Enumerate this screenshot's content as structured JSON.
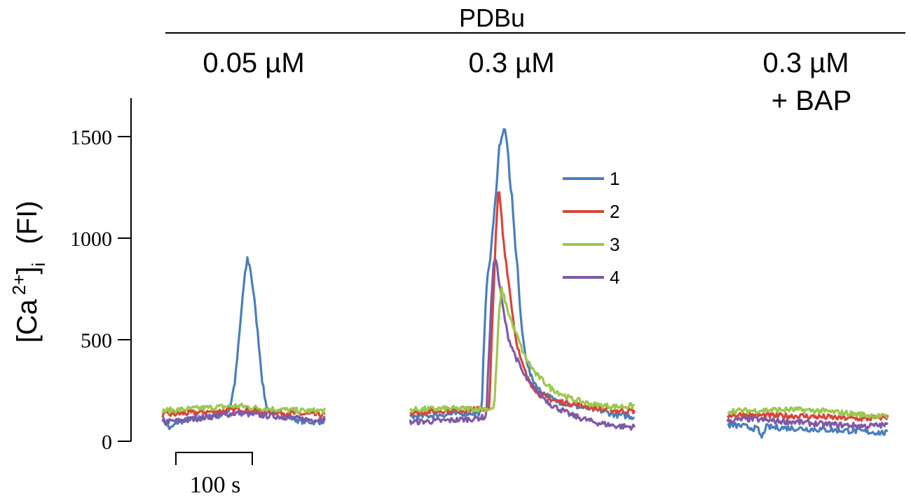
{
  "figure": {
    "drug_label": "PDBu",
    "y_axis_label": {
      "main": "[Ca",
      "superscript": "2+",
      "bracket": "]",
      "subscript": "i",
      "unit": "(FI)"
    },
    "y_ticks": [
      0,
      500,
      1000,
      1500
    ],
    "scale_bar_label": "100 s",
    "panels": [
      {
        "label": "0.05 µM",
        "label_line2": ""
      },
      {
        "label": "0.3 µM",
        "label_line2": ""
      },
      {
        "label": "0.3 µM",
        "label_line2": "+ BAP"
      }
    ],
    "legend": [
      {
        "name": "1",
        "color": "#4a7ebb"
      },
      {
        "name": "2",
        "color": "#d9443a"
      },
      {
        "name": "3",
        "color": "#9bc84f"
      },
      {
        "name": "4",
        "color": "#7e5aa8"
      }
    ]
  },
  "chart_data": {
    "type": "line",
    "ylabel": "[Ca 2+]i (FI)",
    "xlabel": "",
    "ylim": [
      0,
      1650
    ],
    "x_unit": "s",
    "scale_bar_seconds": 100,
    "panels": [
      {
        "title": "0.05 µM",
        "duration_s": 213,
        "series": [
          {
            "name": "1",
            "color": "#4a7ebb",
            "points": [
              [
                0,
                110
              ],
              [
                10,
                60
              ],
              [
                20,
                95
              ],
              [
                40,
                110
              ],
              [
                60,
                120
              ],
              [
                80,
                130
              ],
              [
                88,
                160
              ],
              [
                95,
                300
              ],
              [
                100,
                500
              ],
              [
                105,
                720
              ],
              [
                108,
                820
              ],
              [
                111,
                900
              ],
              [
                115,
                850
              ],
              [
                120,
                700
              ],
              [
                126,
                480
              ],
              [
                131,
                280
              ],
              [
                136,
                170
              ],
              [
                145,
                130
              ],
              [
                165,
                120
              ],
              [
                180,
                100
              ],
              [
                200,
                95
              ],
              [
                213,
                100
              ]
            ]
          },
          {
            "name": "2",
            "color": "#d9443a",
            "points": [
              [
                0,
                130
              ],
              [
                20,
                135
              ],
              [
                40,
                140
              ],
              [
                60,
                145
              ],
              [
                80,
                150
              ],
              [
                100,
                160
              ],
              [
                120,
                150
              ],
              [
                140,
                145
              ],
              [
                160,
                140
              ],
              [
                180,
                135
              ],
              [
                200,
                130
              ],
              [
                213,
                130
              ]
            ]
          },
          {
            "name": "3",
            "color": "#9bc84f",
            "points": [
              [
                0,
                150
              ],
              [
                20,
                155
              ],
              [
                40,
                160
              ],
              [
                60,
                165
              ],
              [
                80,
                170
              ],
              [
                100,
                175
              ],
              [
                120,
                165
              ],
              [
                140,
                160
              ],
              [
                160,
                155
              ],
              [
                180,
                150
              ],
              [
                200,
                150
              ],
              [
                213,
                150
              ]
            ]
          },
          {
            "name": "4",
            "color": "#7e5aa8",
            "points": [
              [
                0,
                95
              ],
              [
                20,
                100
              ],
              [
                40,
                110
              ],
              [
                60,
                120
              ],
              [
                80,
                130
              ],
              [
                100,
                140
              ],
              [
                120,
                130
              ],
              [
                140,
                125
              ],
              [
                160,
                120
              ],
              [
                180,
                110
              ],
              [
                200,
                105
              ],
              [
                213,
                110
              ]
            ]
          }
        ]
      },
      {
        "title": "0.3 µM",
        "duration_s": 294,
        "series": [
          {
            "name": "1",
            "color": "#4a7ebb",
            "points": [
              [
                0,
                120
              ],
              [
                40,
                130
              ],
              [
                80,
                140
              ],
              [
                94,
                140
              ],
              [
                97,
                500
              ],
              [
                100,
                760
              ],
              [
                105,
                900
              ],
              [
                110,
                1100
              ],
              [
                114,
                1300
              ],
              [
                117,
                1450
              ],
              [
                120,
                1500
              ],
              [
                124,
                1540
              ],
              [
                128,
                1450
              ],
              [
                131,
                1250
              ],
              [
                134,
                1200
              ],
              [
                137,
                1000
              ],
              [
                141,
                850
              ],
              [
                145,
                600
              ],
              [
                150,
                450
              ],
              [
                158,
                320
              ],
              [
                170,
                250
              ],
              [
                190,
                200
              ],
              [
                220,
                170
              ],
              [
                250,
                150
              ],
              [
                270,
                130
              ],
              [
                294,
                120
              ]
            ]
          },
          {
            "name": "2",
            "color": "#d9443a",
            "points": [
              [
                0,
                140
              ],
              [
                40,
                150
              ],
              [
                80,
                155
              ],
              [
                104,
                160
              ],
              [
                107,
                500
              ],
              [
                110,
                800
              ],
              [
                113,
                1050
              ],
              [
                116,
                1250
              ],
              [
                119,
                1150
              ],
              [
                122,
                1000
              ],
              [
                127,
                850
              ],
              [
                132,
                700
              ],
              [
                138,
                520
              ],
              [
                145,
                400
              ],
              [
                155,
                300
              ],
              [
                170,
                230
              ],
              [
                190,
                200
              ],
              [
                220,
                180
              ],
              [
                250,
                160
              ],
              [
                270,
                150
              ],
              [
                294,
                150
              ]
            ]
          },
          {
            "name": "3",
            "color": "#9bc84f",
            "points": [
              [
                0,
                155
              ],
              [
                40,
                160
              ],
              [
                80,
                160
              ],
              [
                110,
                160
              ],
              [
                113,
                350
              ],
              [
                116,
                600
              ],
              [
                120,
                750
              ],
              [
                124,
                700
              ],
              [
                130,
                620
              ],
              [
                140,
                520
              ],
              [
                150,
                420
              ],
              [
                165,
                330
              ],
              [
                185,
                260
              ],
              [
                210,
                210
              ],
              [
                240,
                180
              ],
              [
                270,
                170
              ],
              [
                294,
                175
              ]
            ]
          },
          {
            "name": "4",
            "color": "#7e5aa8",
            "points": [
              [
                0,
                95
              ],
              [
                40,
                100
              ],
              [
                80,
                110
              ],
              [
                100,
                120
              ],
              [
                103,
                400
              ],
              [
                106,
                650
              ],
              [
                109,
                850
              ],
              [
                112,
                920
              ],
              [
                116,
                800
              ],
              [
                122,
                650
              ],
              [
                128,
                520
              ],
              [
                138,
                420
              ],
              [
                150,
                320
              ],
              [
                165,
                250
              ],
              [
                185,
                180
              ],
              [
                210,
                130
              ],
              [
                240,
                95
              ],
              [
                270,
                75
              ],
              [
                294,
                70
              ]
            ]
          }
        ]
      },
      {
        "title": "0.3 µM + BAP",
        "duration_s": 210,
        "series": [
          {
            "name": "1",
            "color": "#4a7ebb",
            "points": [
              [
                0,
                80
              ],
              [
                20,
                75
              ],
              [
                40,
                60
              ],
              [
                45,
                15
              ],
              [
                50,
                70
              ],
              [
                80,
                65
              ],
              [
                110,
                60
              ],
              [
                140,
                55
              ],
              [
                170,
                50
              ],
              [
                190,
                45
              ],
              [
                210,
                40
              ]
            ]
          },
          {
            "name": "2",
            "color": "#d9443a",
            "points": [
              [
                0,
                130
              ],
              [
                30,
                130
              ],
              [
                60,
                125
              ],
              [
                90,
                125
              ],
              [
                120,
                120
              ],
              [
                150,
                115
              ],
              [
                180,
                110
              ],
              [
                210,
                120
              ]
            ]
          },
          {
            "name": "3",
            "color": "#9bc84f",
            "points": [
              [
                0,
                150
              ],
              [
                30,
                150
              ],
              [
                60,
                155
              ],
              [
                90,
                155
              ],
              [
                120,
                150
              ],
              [
                150,
                140
              ],
              [
                180,
                130
              ],
              [
                210,
                120
              ]
            ]
          },
          {
            "name": "4",
            "color": "#7e5aa8",
            "points": [
              [
                0,
                100
              ],
              [
                30,
                110
              ],
              [
                60,
                100
              ],
              [
                90,
                95
              ],
              [
                120,
                85
              ],
              [
                150,
                80
              ],
              [
                180,
                75
              ],
              [
                210,
                80
              ]
            ]
          }
        ]
      }
    ]
  }
}
